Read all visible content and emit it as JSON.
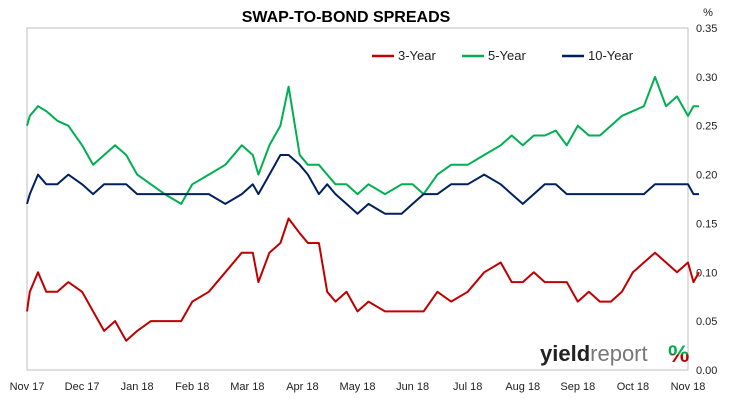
{
  "chart_data": {
    "type": "line",
    "title": "SWAP-TO-BOND SPREADS",
    "unit_label": "%",
    "ylim": [
      0,
      0.35
    ],
    "y_ticks": [
      "0.00",
      "0.05",
      "0.10",
      "0.15",
      "0.20",
      "0.25",
      "0.30",
      "0.35"
    ],
    "x_categories": [
      "Nov 17",
      "Dec 17",
      "Jan 18",
      "Feb 18",
      "Mar 18",
      "Apr 18",
      "May 18",
      "Jun 18",
      "Jul 18",
      "Aug 18",
      "Sep 18",
      "Oct 18",
      "Nov 18"
    ],
    "grid": false,
    "legend_position": "top-right",
    "series": [
      {
        "name": "3-Year",
        "color": "#c00000",
        "points": [
          [
            0.0,
            0.06
          ],
          [
            0.05,
            0.08
          ],
          [
            0.2,
            0.1
          ],
          [
            0.35,
            0.08
          ],
          [
            0.55,
            0.08
          ],
          [
            0.75,
            0.09
          ],
          [
            1.0,
            0.08
          ],
          [
            1.2,
            0.06
          ],
          [
            1.4,
            0.04
          ],
          [
            1.6,
            0.05
          ],
          [
            1.8,
            0.03
          ],
          [
            2.0,
            0.04
          ],
          [
            2.25,
            0.05
          ],
          [
            2.5,
            0.05
          ],
          [
            2.8,
            0.05
          ],
          [
            3.0,
            0.07
          ],
          [
            3.3,
            0.08
          ],
          [
            3.6,
            0.1
          ],
          [
            3.9,
            0.12
          ],
          [
            4.1,
            0.12
          ],
          [
            4.2,
            0.09
          ],
          [
            4.4,
            0.12
          ],
          [
            4.6,
            0.13
          ],
          [
            4.75,
            0.155
          ],
          [
            4.95,
            0.14
          ],
          [
            5.1,
            0.13
          ],
          [
            5.3,
            0.13
          ],
          [
            5.45,
            0.08
          ],
          [
            5.6,
            0.07
          ],
          [
            5.8,
            0.08
          ],
          [
            6.0,
            0.06
          ],
          [
            6.2,
            0.07
          ],
          [
            6.5,
            0.06
          ],
          [
            6.8,
            0.06
          ],
          [
            7.0,
            0.06
          ],
          [
            7.2,
            0.06
          ],
          [
            7.45,
            0.08
          ],
          [
            7.7,
            0.07
          ],
          [
            8.0,
            0.08
          ],
          [
            8.3,
            0.1
          ],
          [
            8.6,
            0.11
          ],
          [
            8.8,
            0.09
          ],
          [
            9.0,
            0.09
          ],
          [
            9.2,
            0.1
          ],
          [
            9.4,
            0.09
          ],
          [
            9.6,
            0.09
          ],
          [
            9.8,
            0.09
          ],
          [
            10.0,
            0.07
          ],
          [
            10.2,
            0.08
          ],
          [
            10.4,
            0.07
          ],
          [
            10.6,
            0.07
          ],
          [
            10.8,
            0.08
          ],
          [
            11.0,
            0.1
          ],
          [
            11.2,
            0.11
          ],
          [
            11.4,
            0.12
          ],
          [
            11.6,
            0.11
          ],
          [
            11.8,
            0.1
          ],
          [
            12.0,
            0.11
          ],
          [
            12.1,
            0.09
          ],
          [
            12.2,
            0.1
          ]
        ]
      },
      {
        "name": "5-Year",
        "color": "#00b050",
        "points": [
          [
            0.0,
            0.25
          ],
          [
            0.05,
            0.26
          ],
          [
            0.2,
            0.27
          ],
          [
            0.35,
            0.265
          ],
          [
            0.55,
            0.255
          ],
          [
            0.75,
            0.25
          ],
          [
            1.0,
            0.23
          ],
          [
            1.2,
            0.21
          ],
          [
            1.4,
            0.22
          ],
          [
            1.6,
            0.23
          ],
          [
            1.8,
            0.22
          ],
          [
            2.0,
            0.2
          ],
          [
            2.25,
            0.19
          ],
          [
            2.5,
            0.18
          ],
          [
            2.8,
            0.17
          ],
          [
            3.0,
            0.19
          ],
          [
            3.3,
            0.2
          ],
          [
            3.6,
            0.21
          ],
          [
            3.9,
            0.23
          ],
          [
            4.1,
            0.22
          ],
          [
            4.2,
            0.2
          ],
          [
            4.4,
            0.23
          ],
          [
            4.6,
            0.25
          ],
          [
            4.75,
            0.29
          ],
          [
            4.95,
            0.22
          ],
          [
            5.1,
            0.21
          ],
          [
            5.3,
            0.21
          ],
          [
            5.45,
            0.2
          ],
          [
            5.6,
            0.19
          ],
          [
            5.8,
            0.19
          ],
          [
            6.0,
            0.18
          ],
          [
            6.2,
            0.19
          ],
          [
            6.5,
            0.18
          ],
          [
            6.8,
            0.19
          ],
          [
            7.0,
            0.19
          ],
          [
            7.2,
            0.18
          ],
          [
            7.45,
            0.2
          ],
          [
            7.7,
            0.21
          ],
          [
            8.0,
            0.21
          ],
          [
            8.3,
            0.22
          ],
          [
            8.6,
            0.23
          ],
          [
            8.8,
            0.24
          ],
          [
            9.0,
            0.23
          ],
          [
            9.2,
            0.24
          ],
          [
            9.4,
            0.24
          ],
          [
            9.6,
            0.245
          ],
          [
            9.8,
            0.23
          ],
          [
            10.0,
            0.25
          ],
          [
            10.2,
            0.24
          ],
          [
            10.4,
            0.24
          ],
          [
            10.6,
            0.25
          ],
          [
            10.8,
            0.26
          ],
          [
            11.0,
            0.265
          ],
          [
            11.2,
            0.27
          ],
          [
            11.4,
            0.3
          ],
          [
            11.6,
            0.27
          ],
          [
            11.8,
            0.28
          ],
          [
            12.0,
            0.26
          ],
          [
            12.1,
            0.27
          ],
          [
            12.2,
            0.27
          ]
        ]
      },
      {
        "name": "10-Year",
        "color": "#002060",
        "points": [
          [
            0.0,
            0.17
          ],
          [
            0.05,
            0.18
          ],
          [
            0.2,
            0.2
          ],
          [
            0.35,
            0.19
          ],
          [
            0.55,
            0.19
          ],
          [
            0.75,
            0.2
          ],
          [
            1.0,
            0.19
          ],
          [
            1.2,
            0.18
          ],
          [
            1.4,
            0.19
          ],
          [
            1.6,
            0.19
          ],
          [
            1.8,
            0.19
          ],
          [
            2.0,
            0.18
          ],
          [
            2.25,
            0.18
          ],
          [
            2.5,
            0.18
          ],
          [
            2.8,
            0.18
          ],
          [
            3.0,
            0.18
          ],
          [
            3.3,
            0.18
          ],
          [
            3.6,
            0.17
          ],
          [
            3.9,
            0.18
          ],
          [
            4.1,
            0.19
          ],
          [
            4.2,
            0.18
          ],
          [
            4.4,
            0.2
          ],
          [
            4.6,
            0.22
          ],
          [
            4.75,
            0.22
          ],
          [
            4.95,
            0.21
          ],
          [
            5.1,
            0.2
          ],
          [
            5.3,
            0.18
          ],
          [
            5.45,
            0.19
          ],
          [
            5.6,
            0.18
          ],
          [
            5.8,
            0.17
          ],
          [
            6.0,
            0.16
          ],
          [
            6.2,
            0.17
          ],
          [
            6.5,
            0.16
          ],
          [
            6.8,
            0.16
          ],
          [
            7.0,
            0.17
          ],
          [
            7.2,
            0.18
          ],
          [
            7.45,
            0.18
          ],
          [
            7.7,
            0.19
          ],
          [
            8.0,
            0.19
          ],
          [
            8.3,
            0.2
          ],
          [
            8.6,
            0.19
          ],
          [
            8.8,
            0.18
          ],
          [
            9.0,
            0.17
          ],
          [
            9.2,
            0.18
          ],
          [
            9.4,
            0.19
          ],
          [
            9.6,
            0.19
          ],
          [
            9.8,
            0.18
          ],
          [
            10.0,
            0.18
          ],
          [
            10.2,
            0.18
          ],
          [
            10.4,
            0.18
          ],
          [
            10.6,
            0.18
          ],
          [
            10.8,
            0.18
          ],
          [
            11.0,
            0.18
          ],
          [
            11.2,
            0.18
          ],
          [
            11.4,
            0.19
          ],
          [
            11.6,
            0.19
          ],
          [
            11.8,
            0.19
          ],
          [
            12.0,
            0.19
          ],
          [
            12.1,
            0.18
          ],
          [
            12.2,
            0.18
          ]
        ]
      }
    ]
  },
  "watermark": {
    "brand_part1": "yield",
    "brand_part2": "report",
    "brand_symbol": "%",
    "symbol_color_top": "#00b050",
    "symbol_color_bottom": "#c00000"
  }
}
